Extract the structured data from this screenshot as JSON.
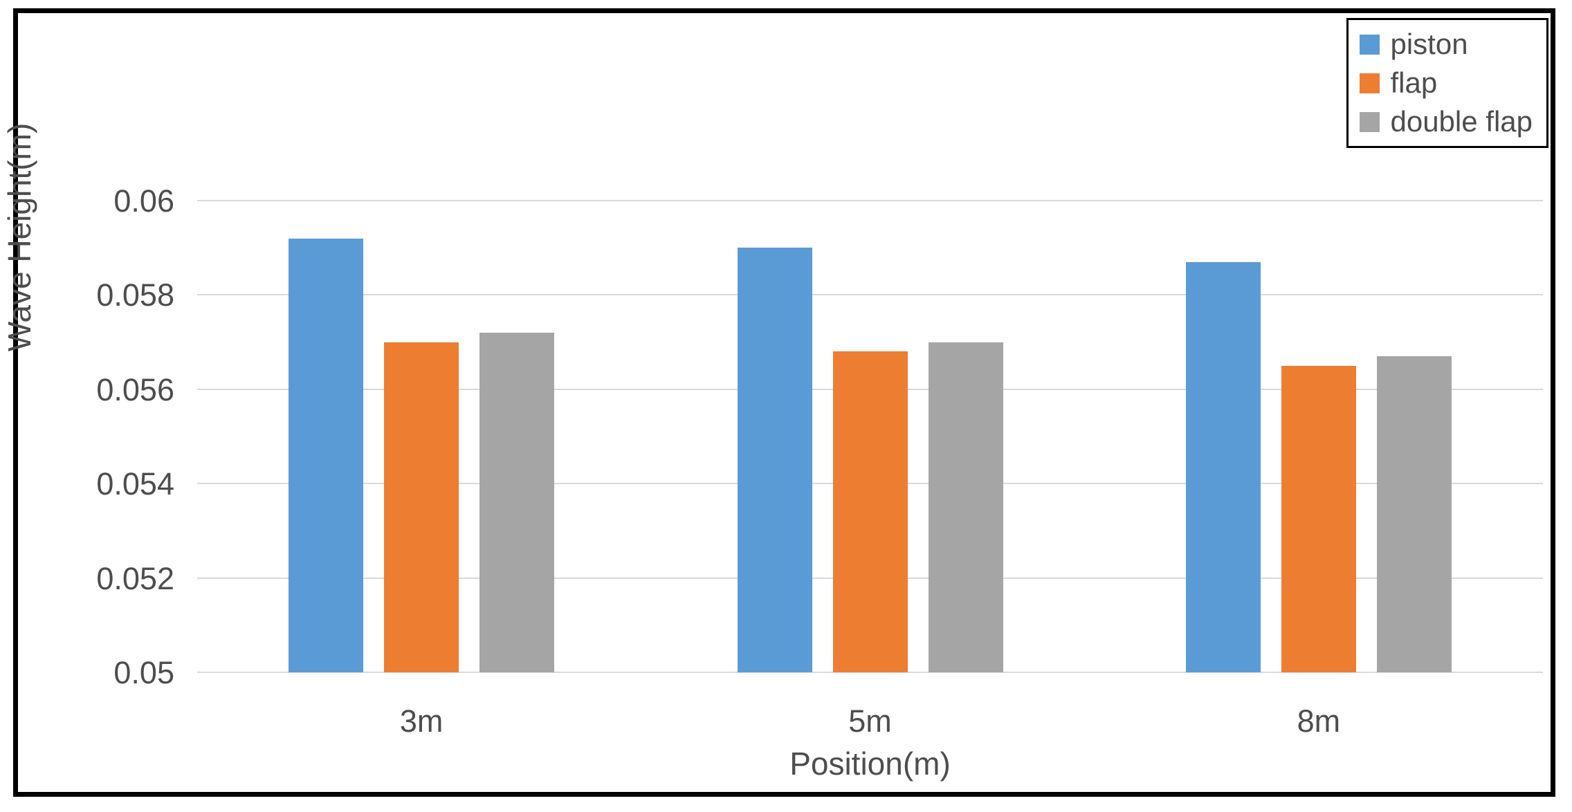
{
  "chart_data": {
    "type": "bar",
    "categories": [
      "3m",
      "5m",
      "8m"
    ],
    "series": [
      {
        "name": "piston",
        "color": "#5B9BD5",
        "values": [
          0.0592,
          0.059,
          0.0587
        ]
      },
      {
        "name": "flap",
        "color": "#ED7D31",
        "values": [
          0.057,
          0.0568,
          0.0565
        ]
      },
      {
        "name": "double flap",
        "color": "#A5A5A5",
        "values": [
          0.0572,
          0.057,
          0.0567
        ]
      }
    ],
    "title": "",
    "xlabel": "Position(m)",
    "ylabel": "Wave Height(m)",
    "ylim": [
      0.05,
      0.06
    ],
    "yticks": [
      0.05,
      0.052,
      0.054,
      0.056,
      0.058,
      0.06
    ],
    "ytick_labels": [
      "0.05",
      "0.052",
      "0.054",
      "0.056",
      "0.058",
      "0.06"
    ],
    "grid": true,
    "legend_position": "top-right",
    "gridline_color": "#D9D9D9",
    "text_color": "#4D4D4D",
    "frame_color": "#000000"
  }
}
